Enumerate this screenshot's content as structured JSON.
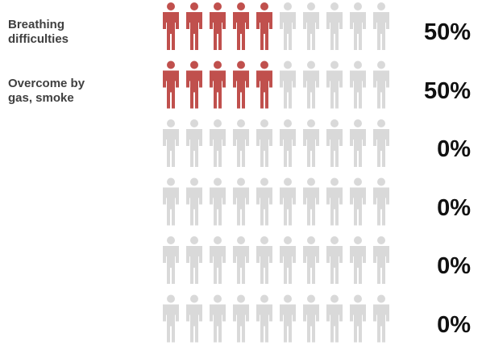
{
  "chart_data": {
    "type": "pictograph",
    "icon": "person-icon",
    "icons_per_row": 10,
    "rows": [
      {
        "label": "Breathing\ndifficulties",
        "value": 50,
        "display": "50%"
      },
      {
        "label": "Overcome by\ngas, smoke",
        "value": 50,
        "display": "50%"
      },
      {
        "label": "",
        "value": 0,
        "display": "0%"
      },
      {
        "label": "",
        "value": 0,
        "display": "0%"
      },
      {
        "label": "",
        "value": 0,
        "display": "0%"
      },
      {
        "label": "",
        "value": 0,
        "display": "0%"
      }
    ],
    "colors": {
      "filled": "#c0504d",
      "empty": "#d9d9d9"
    }
  }
}
